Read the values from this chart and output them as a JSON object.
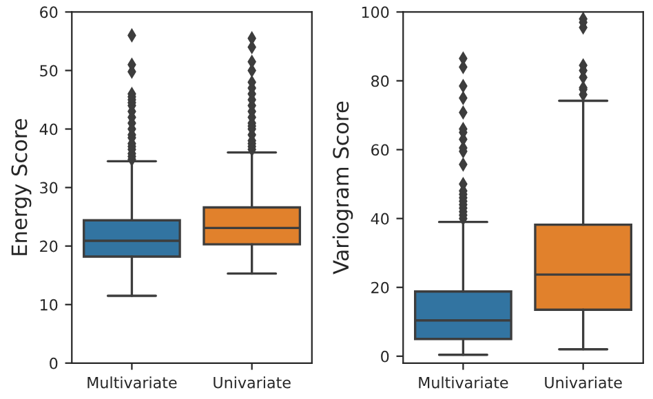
{
  "chart_data": [
    {
      "type": "box",
      "ylabel": "Energy Score",
      "categories": [
        "Multivariate",
        "Univariate"
      ],
      "colors": [
        "#3274a1",
        "#e1812c"
      ],
      "ylim": [
        0,
        60
      ],
      "yticks": [
        0,
        10,
        20,
        30,
        40,
        50,
        60
      ],
      "grid": false,
      "marker": "diamond",
      "boxes": [
        {
          "low": 11.5,
          "q1": 18.2,
          "median": 20.9,
          "q3": 24.4,
          "high": 34.5,
          "outliers": [
            34.8,
            35.3,
            35.8,
            36.5,
            37,
            37.5,
            38.5,
            39,
            40,
            41,
            42,
            43,
            44,
            44.5,
            45,
            45.5,
            46,
            49.8,
            51,
            56
          ]
        },
        {
          "low": 15.3,
          "q1": 20.3,
          "median": 23.1,
          "q3": 26.6,
          "high": 36,
          "outliers": [
            36.5,
            37,
            37.5,
            38,
            39,
            40,
            40.5,
            41,
            42,
            43,
            44,
            45,
            46,
            47,
            48,
            50,
            51.5,
            54,
            55.5
          ]
        }
      ]
    },
    {
      "type": "box",
      "ylabel": "Variogram Score",
      "categories": [
        "Multivariate",
        "Univariate"
      ],
      "colors": [
        "#3274a1",
        "#e1812c"
      ],
      "ylim": [
        -2,
        100
      ],
      "yticks": [
        0,
        20,
        40,
        60,
        80,
        100
      ],
      "grid": false,
      "marker": "diamond",
      "boxes": [
        {
          "low": 0.4,
          "q1": 5,
          "median": 10.4,
          "q3": 18.8,
          "high": 39,
          "outliers": [
            40,
            41,
            42,
            43,
            44,
            45,
            46,
            47,
            48,
            50,
            55.7,
            59.5,
            60.5,
            63,
            65,
            66,
            70.8,
            75,
            78.5,
            84,
            86.5
          ]
        },
        {
          "low": 2,
          "q1": 13.5,
          "median": 23.7,
          "q3": 38.2,
          "high": 74.2,
          "outliers": [
            76,
            77.5,
            78,
            81,
            83,
            84.5,
            95.5,
            97,
            98
          ]
        }
      ]
    }
  ]
}
